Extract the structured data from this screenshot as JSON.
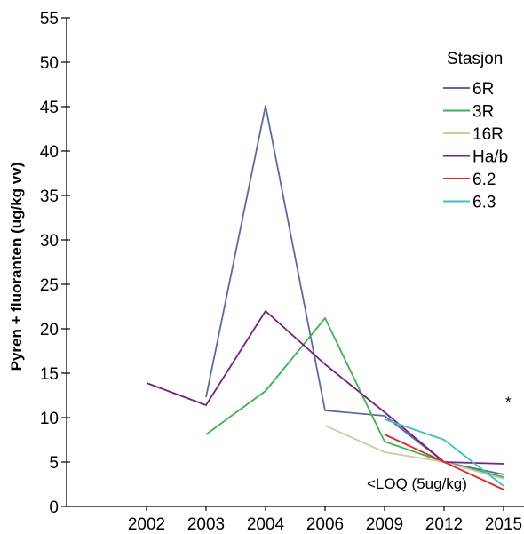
{
  "chart_data": {
    "type": "line",
    "title": "",
    "xlabel": "",
    "ylabel": "Pyren + fluoranten (ug/kg vv)",
    "categories": [
      "2002",
      "2003",
      "2004",
      "2006",
      "2009",
      "2012",
      "2015"
    ],
    "ylim": [
      0,
      55
    ],
    "yticks": [
      0,
      5,
      10,
      15,
      20,
      25,
      30,
      35,
      40,
      45,
      50,
      55
    ],
    "grid": false,
    "legend": {
      "title": "Stasjon",
      "position": "top-right"
    },
    "series": [
      {
        "name": "6R",
        "color": "#5a6aa8",
        "values": [
          null,
          12.3,
          45.1,
          10.8,
          10.2,
          5.0,
          3.6
        ]
      },
      {
        "name": "3R",
        "color": "#3cb44b",
        "values": [
          null,
          8.1,
          13.0,
          21.2,
          7.3,
          5.0,
          3.3
        ]
      },
      {
        "name": "16R",
        "color": "#cfcc9c",
        "values": [
          null,
          null,
          null,
          9.1,
          6.1,
          5.0,
          3.1
        ]
      },
      {
        "name": "Ha/b",
        "color": "#7a1f82",
        "values": [
          13.9,
          11.4,
          22.0,
          16.0,
          10.6,
          5.0,
          4.8
        ]
      },
      {
        "name": "6.2",
        "color": "#e32626",
        "values": [
          null,
          null,
          null,
          null,
          8.1,
          5.0,
          1.9
        ]
      },
      {
        "name": "6.3",
        "color": "#3fc0c0",
        "values": [
          null,
          null,
          null,
          null,
          9.8,
          7.5,
          2.3
        ]
      }
    ],
    "annotations": [
      {
        "text": "<LOQ (5ug/kg)",
        "x": "2012",
        "y": 2.6
      },
      {
        "text": "*",
        "x": "2015",
        "y": 11.8
      }
    ]
  }
}
